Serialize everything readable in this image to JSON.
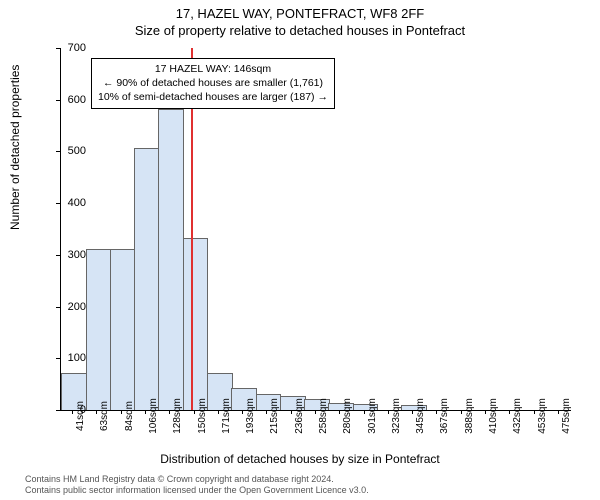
{
  "title_main": "17, HAZEL WAY, PONTEFRACT, WF8 2FF",
  "title_sub": "Size of property relative to detached houses in Pontefract",
  "y_axis_label": "Number of detached properties",
  "x_axis_label": "Distribution of detached houses by size in Pontefract",
  "footer_line1": "Contains HM Land Registry data © Crown copyright and database right 2024.",
  "footer_line2": "Contains public sector information licensed under the Open Government Licence v3.0.",
  "chart": {
    "type": "histogram",
    "ylim": [
      0,
      700
    ],
    "ytick_step": 100,
    "bar_fill": "#d6e4f5",
    "bar_border": "#666666",
    "background_color": "#ffffff",
    "reference_line": {
      "x_value": 146,
      "color": "#e03030",
      "width": 2
    },
    "x_categories": [
      "41sqm",
      "63sqm",
      "84sqm",
      "106sqm",
      "128sqm",
      "150sqm",
      "171sqm",
      "193sqm",
      "215sqm",
      "236sqm",
      "258sqm",
      "280sqm",
      "301sqm",
      "323sqm",
      "345sqm",
      "367sqm",
      "388sqm",
      "410sqm",
      "432sqm",
      "453sqm",
      "475sqm"
    ],
    "values": [
      70,
      310,
      310,
      505,
      580,
      330,
      70,
      40,
      30,
      25,
      20,
      12,
      10,
      0,
      8,
      0,
      0,
      0,
      0,
      0,
      0
    ],
    "bar_width_ratio": 0.98
  },
  "annotation": {
    "line1": "17 HAZEL WAY: 146sqm",
    "line2": "← 90% of detached houses are smaller (1,761)",
    "line3": "10% of semi-detached houses are larger (187) →",
    "border_color": "#000000",
    "bg_color": "#ffffff",
    "fontsize": 10.5
  },
  "fonts": {
    "title_fontsize": 13,
    "axis_label_fontsize": 12,
    "tick_fontsize": 11,
    "x_tick_fontsize": 10
  }
}
